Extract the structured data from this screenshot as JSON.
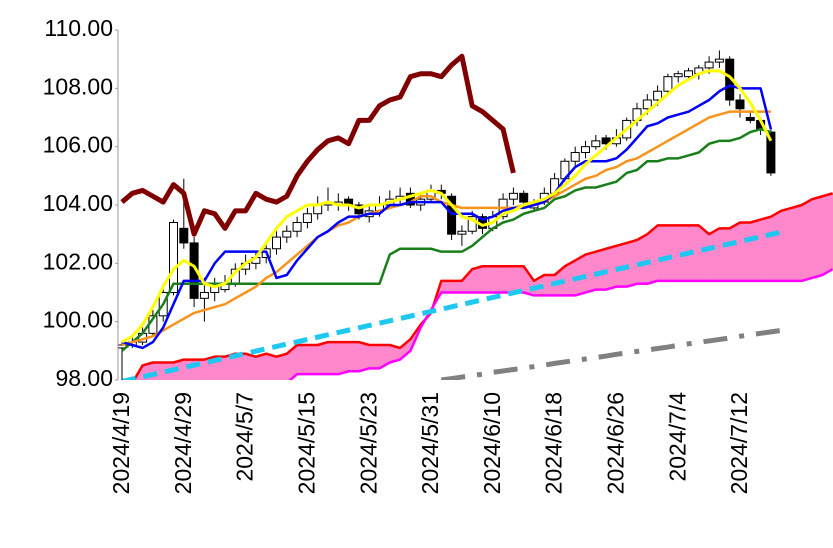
{
  "chart_data": {
    "type": "candlestick",
    "categories": [
      "2024/4/19",
      null,
      null,
      null,
      null,
      null,
      "2024/4/29",
      null,
      null,
      null,
      null,
      null,
      "2024/5/7",
      null,
      null,
      null,
      null,
      null,
      "2024/5/15",
      null,
      null,
      null,
      null,
      null,
      "2024/5/23",
      null,
      null,
      null,
      null,
      null,
      "2024/5/31",
      null,
      null,
      null,
      null,
      null,
      "2024/6/10",
      null,
      null,
      null,
      null,
      null,
      "2024/6/18",
      null,
      null,
      null,
      null,
      null,
      "2024/6/26",
      null,
      null,
      null,
      null,
      null,
      "2024/7/4",
      null,
      null,
      null,
      null,
      null,
      "2024/7/12",
      null,
      null,
      null,
      null,
      null,
      null,
      null,
      null,
      null
    ],
    "ylim": [
      98,
      110
    ],
    "yticks": [
      {
        "value": 98,
        "label": "98.00"
      },
      {
        "value": 100,
        "label": "100.00"
      },
      {
        "value": 102,
        "label": "102.00"
      },
      {
        "value": 104,
        "label": "104.00"
      },
      {
        "value": 106,
        "label": "106.00"
      },
      {
        "value": 108,
        "label": "108.00"
      },
      {
        "value": 110,
        "label": "110.00"
      }
    ],
    "up_color": "#ffffff",
    "down_color": "#000000",
    "cloud_color": "#ff88cc",
    "candles": {
      "open": [
        99.1,
        99.2,
        99.3,
        99.6,
        100.2,
        101.0,
        103.2,
        102.7,
        100.8,
        101.0,
        101.1,
        101.3,
        101.8,
        102.0,
        102.2,
        102.5,
        102.9,
        103.1,
        103.4,
        103.7,
        104.0,
        104.0,
        104.2,
        104.0,
        103.6,
        103.8,
        104.0,
        104.2,
        104.4,
        104.0,
        104.2,
        104.5,
        104.3,
        103.0,
        103.1,
        103.6,
        103.2,
        103.6,
        104.2,
        104.4,
        103.9,
        104.1,
        104.4,
        104.9,
        105.5,
        105.8,
        106.0,
        106.3,
        106.1,
        106.3,
        106.9,
        107.3,
        107.6,
        107.9,
        108.4,
        108.4,
        108.5,
        108.7,
        108.9,
        109.0,
        107.6,
        107.0,
        106.9,
        106.5,
        null,
        null,
        null,
        null,
        null,
        null
      ],
      "high": [
        99.3,
        99.5,
        99.8,
        100.4,
        101.3,
        103.5,
        104.9,
        102.9,
        101.5,
        101.5,
        101.6,
        102.0,
        102.3,
        102.4,
        102.7,
        103.1,
        103.3,
        103.6,
        103.9,
        104.3,
        104.6,
        104.4,
        104.3,
        104.1,
        104.0,
        104.3,
        104.5,
        104.6,
        104.6,
        104.4,
        104.7,
        104.7,
        104.4,
        103.3,
        103.8,
        103.7,
        103.8,
        104.4,
        104.6,
        104.5,
        104.2,
        104.6,
        105.1,
        105.6,
        106.0,
        106.2,
        106.4,
        106.4,
        106.6,
        107.0,
        107.5,
        107.8,
        108.1,
        108.5,
        108.6,
        108.7,
        108.8,
        109.1,
        109.3,
        109.1,
        107.8,
        107.2,
        107.0,
        106.6,
        null,
        null,
        null,
        null,
        null,
        null
      ],
      "low": [
        97.9,
        99.1,
        99.2,
        99.5,
        100.0,
        100.9,
        102.5,
        100.5,
        100.0,
        100.7,
        101.0,
        101.2,
        101.6,
        101.8,
        102.0,
        102.3,
        102.7,
        102.9,
        103.2,
        103.5,
        103.8,
        103.8,
        103.8,
        103.5,
        103.4,
        103.6,
        103.9,
        104.0,
        103.9,
        103.8,
        104.1,
        104.2,
        102.8,
        102.6,
        103.0,
        103.0,
        103.1,
        103.5,
        104.0,
        104.0,
        103.8,
        104.0,
        104.3,
        104.8,
        105.3,
        105.6,
        105.9,
        105.9,
        106.0,
        106.2,
        106.7,
        107.1,
        107.4,
        107.8,
        108.2,
        108.3,
        108.3,
        108.5,
        108.7,
        107.4,
        107.0,
        106.8,
        106.4,
        105.0,
        null,
        null,
        null,
        null,
        null,
        null
      ],
      "close": [
        99.2,
        99.3,
        99.6,
        100.2,
        101.0,
        103.4,
        102.7,
        100.8,
        101.0,
        101.3,
        101.3,
        101.8,
        102.0,
        102.2,
        102.5,
        102.9,
        103.1,
        103.4,
        103.7,
        104.0,
        104.1,
        104.1,
        104.0,
        103.7,
        103.8,
        104.0,
        104.2,
        104.3,
        104.0,
        104.2,
        104.5,
        104.4,
        103.0,
        103.1,
        103.6,
        103.2,
        103.6,
        104.2,
        104.4,
        104.1,
        104.1,
        104.4,
        104.9,
        105.5,
        105.8,
        106.0,
        106.2,
        106.1,
        106.3,
        106.9,
        107.3,
        107.6,
        107.9,
        108.4,
        108.5,
        108.6,
        108.7,
        108.9,
        109.0,
        107.6,
        107.3,
        106.9,
        106.6,
        105.1,
        null,
        null,
        null,
        null,
        null,
        null
      ]
    },
    "cloud": [
      {
        "color": "#ff0000",
        "values": [
          97.8,
          97.9,
          98.5,
          98.6,
          98.6,
          98.6,
          98.7,
          98.7,
          98.7,
          98.8,
          98.8,
          98.9,
          98.9,
          98.8,
          98.9,
          98.8,
          98.9,
          99.2,
          99.2,
          99.2,
          99.3,
          99.3,
          99.3,
          99.3,
          99.2,
          99.2,
          99.2,
          99.1,
          99.4,
          99.9,
          100.3,
          101.4,
          101.4,
          101.4,
          101.8,
          101.9,
          101.9,
          101.9,
          101.9,
          101.9,
          101.4,
          101.6,
          101.6,
          101.9,
          102.1,
          102.3,
          102.4,
          102.5,
          102.6,
          102.7,
          102.8,
          103.0,
          103.3,
          103.3,
          103.3,
          103.3,
          103.3,
          103.0,
          103.2,
          103.2,
          103.4,
          103.4,
          103.5,
          103.6,
          103.8,
          103.9,
          104.0,
          104.2,
          104.3,
          104.4
        ]
      },
      {
        "color": "#ff00ff",
        "values": [
          97.6,
          97.8,
          97.8,
          97.9,
          97.9,
          97.9,
          97.9,
          97.9,
          97.9,
          97.9,
          97.9,
          97.9,
          97.9,
          97.9,
          97.9,
          97.9,
          97.9,
          98.2,
          98.2,
          98.2,
          98.2,
          98.2,
          98.3,
          98.3,
          98.4,
          98.4,
          98.6,
          98.7,
          99.0,
          99.8,
          100.4,
          101.0,
          101.0,
          101.0,
          101.0,
          101.0,
          101.0,
          101.0,
          101.0,
          101.0,
          100.9,
          100.9,
          100.9,
          100.9,
          100.9,
          101.0,
          101.1,
          101.1,
          101.2,
          101.2,
          101.3,
          101.3,
          101.4,
          101.4,
          101.4,
          101.4,
          101.4,
          101.4,
          101.4,
          101.4,
          101.4,
          101.4,
          101.4,
          101.4,
          101.4,
          101.4,
          101.4,
          101.5,
          101.6,
          101.8
        ]
      }
    ],
    "series": [
      {
        "color": "#1ec8f0",
        "dash": "dashed",
        "width": 5,
        "values": [
          97.95,
          98.03,
          98.11,
          98.19,
          98.27,
          98.35,
          98.43,
          98.51,
          98.59,
          98.67,
          98.75,
          98.83,
          98.91,
          98.99,
          99.07,
          99.15,
          99.23,
          99.31,
          99.39,
          99.47,
          99.55,
          99.63,
          99.71,
          99.79,
          99.87,
          99.95,
          100.03,
          100.11,
          100.19,
          100.27,
          100.35,
          100.43,
          100.51,
          100.59,
          100.67,
          100.75,
          100.83,
          100.91,
          100.99,
          101.07,
          101.15,
          101.23,
          101.31,
          101.39,
          101.47,
          101.55,
          101.63,
          101.71,
          101.79,
          101.87,
          101.95,
          102.03,
          102.11,
          102.19,
          102.27,
          102.35,
          102.43,
          102.51,
          102.59,
          102.67,
          102.75,
          102.83,
          102.91,
          102.99,
          103.07,
          null,
          null,
          null,
          null,
          null
        ]
      },
      {
        "color": "#808080",
        "dash": "dash-dot",
        "width": 5,
        "values": [
          null,
          null,
          null,
          null,
          null,
          null,
          null,
          null,
          null,
          null,
          null,
          null,
          null,
          null,
          null,
          null,
          null,
          null,
          null,
          null,
          null,
          null,
          null,
          null,
          null,
          null,
          null,
          null,
          null,
          null,
          null,
          98.0,
          98.05,
          98.1,
          98.15,
          98.2,
          98.26,
          98.31,
          98.36,
          98.41,
          98.46,
          98.51,
          98.57,
          98.62,
          98.67,
          98.72,
          98.77,
          98.82,
          98.88,
          98.93,
          98.98,
          99.03,
          99.08,
          99.13,
          99.19,
          99.24,
          99.29,
          99.34,
          99.39,
          99.44,
          99.5,
          99.55,
          99.6,
          99.65,
          99.7,
          null,
          null,
          null,
          null,
          null
        ]
      },
      {
        "color": "#1a7f1a",
        "width": 2.5,
        "values": [
          99.0,
          99.3,
          99.6,
          100.1,
          100.6,
          101.3,
          101.3,
          101.3,
          101.3,
          101.3,
          101.3,
          101.3,
          101.3,
          101.3,
          101.3,
          101.3,
          101.3,
          101.3,
          101.3,
          101.3,
          101.3,
          101.3,
          101.3,
          101.3,
          101.3,
          101.3,
          102.3,
          102.5,
          102.5,
          102.5,
          102.5,
          102.4,
          102.4,
          102.4,
          102.6,
          102.9,
          103.2,
          103.4,
          103.5,
          103.7,
          103.8,
          103.9,
          104.2,
          104.3,
          104.5,
          104.6,
          104.6,
          104.7,
          104.8,
          105.1,
          105.2,
          105.5,
          105.5,
          105.6,
          105.6,
          105.7,
          105.8,
          106.1,
          106.2,
          106.2,
          106.3,
          106.5,
          106.6,
          106.5,
          null,
          null,
          null,
          null,
          null,
          null
        ]
      },
      {
        "color": "#f7941d",
        "width": 2.5,
        "values": [
          99.2,
          99.3,
          99.4,
          99.5,
          99.7,
          99.9,
          100.1,
          100.3,
          100.4,
          100.5,
          100.6,
          100.8,
          101.0,
          101.2,
          101.5,
          101.7,
          102.0,
          102.3,
          102.6,
          102.9,
          103.1,
          103.3,
          103.4,
          103.6,
          103.7,
          103.8,
          103.9,
          104.0,
          104.1,
          104.3,
          104.3,
          104.1,
          104.0,
          103.9,
          103.9,
          103.9,
          103.9,
          103.9,
          103.9,
          104.0,
          104.0,
          104.1,
          104.3,
          104.5,
          104.7,
          104.9,
          105.0,
          105.2,
          105.3,
          105.5,
          105.6,
          105.8,
          106.0,
          106.2,
          106.4,
          106.6,
          106.8,
          107.0,
          107.1,
          107.2,
          107.2,
          107.2,
          107.2,
          107.2,
          null,
          null,
          null,
          null,
          null,
          null
        ]
      },
      {
        "color": "#0000ff",
        "width": 2.5,
        "values": [
          99.3,
          99.2,
          99.1,
          99.3,
          99.8,
          100.6,
          101.4,
          101.4,
          101.4,
          102.0,
          102.4,
          102.4,
          102.4,
          102.4,
          102.4,
          101.5,
          101.6,
          102.1,
          102.5,
          102.9,
          103.1,
          103.4,
          103.6,
          103.6,
          103.7,
          103.7,
          104.0,
          104.0,
          104.1,
          104.1,
          104.1,
          104.1,
          103.7,
          103.7,
          103.7,
          103.5,
          103.6,
          103.8,
          103.9,
          103.9,
          104.0,
          104.1,
          104.4,
          104.9,
          105.3,
          105.5,
          105.5,
          105.5,
          105.6,
          105.9,
          106.3,
          106.7,
          106.8,
          107.0,
          107.1,
          107.2,
          107.4,
          107.6,
          107.9,
          108.1,
          108.0,
          108.0,
          108.0,
          106.6,
          null,
          null,
          null,
          null,
          null,
          null
        ]
      },
      {
        "color": "#ffff00",
        "width": 3,
        "values": [
          99.3,
          99.5,
          99.9,
          100.5,
          101.2,
          101.8,
          102.1,
          101.9,
          101.3,
          101.2,
          101.3,
          101.7,
          102.0,
          102.2,
          102.7,
          103.2,
          103.6,
          103.8,
          104.0,
          104.0,
          104.1,
          104.0,
          104.0,
          103.9,
          104.0,
          104.0,
          104.1,
          104.2,
          104.3,
          104.4,
          104.5,
          104.4,
          104.0,
          103.6,
          103.5,
          103.3,
          103.4,
          103.7,
          103.8,
          104.0,
          104.1,
          104.2,
          104.4,
          104.7,
          105.0,
          105.4,
          105.7,
          106.0,
          106.3,
          106.6,
          106.9,
          107.2,
          107.5,
          107.8,
          108.1,
          108.3,
          108.5,
          108.6,
          108.6,
          108.4,
          108.0,
          107.5,
          106.9,
          106.2,
          null,
          null,
          null,
          null,
          null,
          null
        ]
      },
      {
        "color": "#800000",
        "width": 5,
        "values": [
          104.1,
          104.4,
          104.5,
          104.3,
          104.1,
          104.7,
          104.4,
          103.0,
          103.8,
          103.7,
          103.2,
          103.8,
          103.8,
          104.4,
          104.2,
          104.1,
          104.3,
          105.0,
          105.5,
          105.9,
          106.2,
          106.3,
          106.1,
          106.9,
          106.9,
          107.4,
          107.6,
          107.7,
          108.4,
          108.5,
          108.5,
          108.4,
          108.8,
          109.1,
          107.4,
          107.2,
          106.9,
          106.6,
          105.1,
          null,
          null,
          null,
          null,
          null,
          null,
          null,
          null,
          null,
          null,
          null,
          null,
          null,
          null,
          null,
          null,
          null,
          null,
          null,
          null,
          null,
          null,
          null,
          null,
          null,
          null,
          null,
          null,
          null,
          null,
          null
        ]
      }
    ]
  }
}
